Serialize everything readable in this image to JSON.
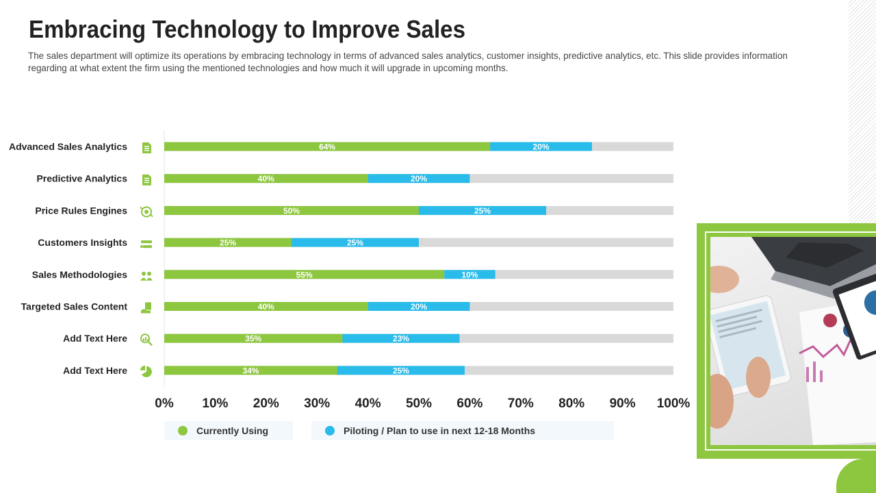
{
  "header": {
    "title": "Embracing Technology to Improve Sales",
    "description": "The sales department will optimize its operations by embracing technology in terms of advanced sales analytics, customer insights, predictive analytics, etc. This slide provides information regarding at what extent the firm using the mentioned technologies and how much it will upgrade in upcoming months."
  },
  "colors": {
    "current": "#8dc63f",
    "piloting": "#29bbe9",
    "remaining": "#d9d9d9",
    "icon": "#8dc63f",
    "frame": "#8dc63f"
  },
  "chart_data": {
    "type": "bar",
    "orientation": "horizontal",
    "stacked": true,
    "categories": [
      "Advanced Sales Analytics",
      "Predictive Analytics",
      "Price Rules Engines",
      "Customers Insights",
      "Sales Methodologies",
      "Targeted Sales Content",
      "Add Text Here",
      "Add Text Here"
    ],
    "icons": [
      "document-icon",
      "document-icon",
      "target-icon",
      "insights-icon",
      "team-icon",
      "content-icon",
      "magnifier-chart-icon",
      "pie-chart-icon"
    ],
    "series": [
      {
        "name": "Currently Using",
        "values": [
          64,
          40,
          50,
          25,
          55,
          40,
          35,
          34
        ],
        "labels": [
          "64%",
          "40%",
          "50%",
          "25%",
          "55%",
          "40%",
          "35%",
          "34%"
        ]
      },
      {
        "name": "Piloting / Plan to use in next 12-18 Months",
        "values": [
          20,
          20,
          25,
          25,
          10,
          20,
          23,
          25
        ],
        "labels": [
          "20%",
          "20%",
          "25%",
          "25%",
          "10%",
          "20%",
          "23%",
          "25%"
        ]
      }
    ],
    "xlim": [
      0,
      100
    ],
    "xticks": [
      "0%",
      "10%",
      "20%",
      "30%",
      "40%",
      "50%",
      "60%",
      "70%",
      "80%",
      "90%",
      "100%"
    ],
    "legend": "bottom"
  },
  "legend": {
    "current_label": "Currently Using",
    "piloting_label": "Piloting / Plan to use in next 12-18 Months"
  }
}
